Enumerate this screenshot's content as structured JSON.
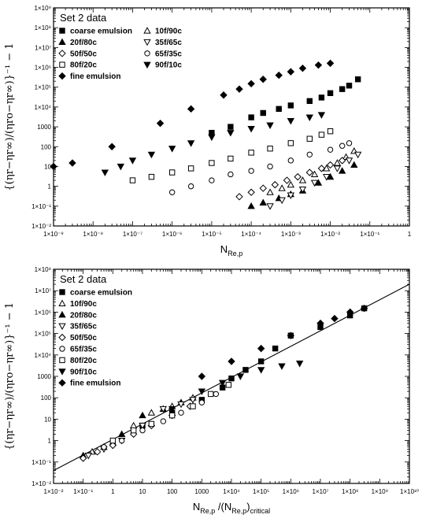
{
  "colors": {
    "ink": "#000000",
    "background": "#ffffff"
  },
  "chart_data": [
    {
      "type": "scatter",
      "xscale": "log",
      "yscale": "log",
      "xlim": [
        1e-09,
        1
      ],
      "ylim": [
        0.01,
        1000000000.0
      ],
      "grid": false,
      "legend_position": "top-left",
      "x_ticks": [
        1e-09,
        1e-08,
        1e-07,
        1e-06,
        1e-05,
        0.0001,
        0.001,
        0.01,
        0.1,
        1
      ],
      "x_tick_labels": [
        "1×10⁻⁹",
        "1×10⁻⁸",
        "1×10⁻⁷",
        "1×10⁻⁶",
        "1×10⁻⁵",
        "1×10⁻⁴",
        "1×10⁻³",
        "1×10⁻²",
        "1×10⁻¹",
        "1"
      ],
      "y_ticks": [
        0.01,
        0.1,
        1,
        10,
        100,
        1000,
        10000.0,
        100000.0,
        1000000.0,
        10000000.0,
        100000000.0,
        1000000000.0
      ],
      "y_tick_labels": [
        "1×10⁻²",
        "1×10⁻¹",
        "1",
        "10",
        "100",
        "1000",
        "1×10⁴",
        "1×10⁵",
        "1×10⁶",
        "1×10⁷",
        "1×10⁸",
        "1×10⁹"
      ],
      "xlabel": {
        "main": "N",
        "sub": "Re,p",
        "tail": ""
      },
      "ylabel": "{(ηr−ηr∞)/(ηro−ηr∞)}⁻¹ − 1",
      "legend_title": "Set 2 data",
      "legend_layout": "two-column",
      "series": [
        {
          "name": "coarse emulsion",
          "marker": "square",
          "filled": true,
          "x": [
            1e-05,
            3e-05,
            0.0001,
            0.0002,
            0.0005,
            0.001,
            0.003,
            0.006,
            0.01,
            0.02,
            0.03,
            0.05
          ],
          "y": [
            500,
            1000,
            3000,
            5000,
            8000,
            12000.0,
            20000.0,
            30000.0,
            50000.0,
            80000.0,
            120000.0,
            250000.0
          ]
        },
        {
          "name": "10f/90c",
          "marker": "triangle-up",
          "filled": false,
          "x": [
            0.0003,
            0.0006,
            0.001,
            0.002,
            0.004,
            0.008,
            0.015,
            0.025,
            0.04
          ],
          "y": [
            0.5,
            0.8,
            1.2,
            2,
            4,
            8,
            15,
            30,
            60
          ]
        },
        {
          "name": "20f/80c",
          "marker": "triangle-up",
          "filled": true,
          "x": [
            0.0001,
            0.0002,
            0.0005,
            0.001,
            0.002,
            0.005,
            0.01,
            0.02,
            0.04
          ],
          "y": [
            0.1,
            0.15,
            0.25,
            0.4,
            0.6,
            1.5,
            3,
            6,
            12
          ]
        },
        {
          "name": "35f/65c",
          "marker": "triangle-down",
          "filled": false,
          "x": [
            0.0003,
            0.0006,
            0.001,
            0.002,
            0.004,
            0.008,
            0.015,
            0.03,
            0.05
          ],
          "y": [
            0.1,
            0.2,
            0.35,
            0.7,
            1.5,
            3,
            8,
            20,
            40
          ]
        },
        {
          "name": "50f/50c",
          "marker": "diamond",
          "filled": false,
          "x": [
            5e-05,
            0.0001,
            0.0002,
            0.0004,
            0.0008,
            0.0015,
            0.003,
            0.006,
            0.01,
            0.02
          ],
          "y": [
            0.3,
            0.5,
            0.8,
            1.2,
            2,
            3,
            5,
            8,
            12,
            20
          ]
        },
        {
          "name": "65f/35c",
          "marker": "circle",
          "filled": false,
          "x": [
            1e-06,
            3e-06,
            1e-05,
            3e-05,
            0.0001,
            0.0003,
            0.001,
            0.003,
            0.01,
            0.02,
            0.03
          ],
          "y": [
            0.5,
            1,
            2,
            4,
            6,
            10,
            20,
            40,
            70,
            110,
            150
          ]
        },
        {
          "name": "80f/20c",
          "marker": "square",
          "filled": false,
          "x": [
            1e-07,
            3e-07,
            1e-06,
            3e-06,
            1e-05,
            3e-05,
            0.0001,
            0.0003,
            0.001,
            0.003,
            0.006,
            0.01
          ],
          "y": [
            2,
            3,
            5,
            8,
            15,
            25,
            50,
            80,
            150,
            250,
            400,
            600
          ]
        },
        {
          "name": "90f/10c",
          "marker": "triangle-down",
          "filled": true,
          "x": [
            2e-08,
            5e-08,
            1e-07,
            3e-07,
            1e-06,
            3e-06,
            1e-05,
            3e-05,
            0.0001,
            0.0003,
            0.001,
            0.003,
            0.006
          ],
          "y": [
            5,
            10,
            20,
            40,
            80,
            150,
            300,
            500,
            800,
            1200,
            2000,
            3000,
            4000
          ]
        },
        {
          "name": "fine emulsion",
          "marker": "diamond",
          "filled": true,
          "x": [
            1e-09,
            3e-09,
            3e-08,
            5e-07,
            3e-06,
            2e-05,
            5e-05,
            0.0001,
            0.0002,
            0.0005,
            0.001,
            0.002,
            0.005,
            0.01
          ],
          "y": [
            10,
            15,
            100,
            1500,
            8000,
            40000.0,
            80000.0,
            150000.0,
            250000.0,
            400000.0,
            600000.0,
            900000.0,
            1300000.0,
            1600000.0
          ]
        }
      ]
    },
    {
      "type": "scatter",
      "xscale": "log",
      "yscale": "log",
      "xlim": [
        0.01,
        10000000000.0
      ],
      "ylim": [
        0.01,
        100000000.0
      ],
      "grid": false,
      "legend_position": "top-left",
      "x_ticks": [
        0.01,
        0.1,
        1,
        10,
        100,
        1000,
        10000.0,
        100000.0,
        1000000.0,
        10000000.0,
        100000000.0,
        1000000000.0,
        10000000000.0
      ],
      "x_tick_labels": [
        "1×10⁻²",
        "1×10⁻¹",
        "1",
        "10",
        "100",
        "1000",
        "1×10⁴",
        "1×10⁵",
        "1×10⁶",
        "1×10⁷",
        "1×10⁸",
        "1×10⁹",
        "1×10¹⁰"
      ],
      "y_ticks": [
        0.01,
        0.1,
        1,
        10,
        100,
        1000,
        10000.0,
        100000.0,
        1000000.0,
        10000000.0,
        100000000.0
      ],
      "y_tick_labels": [
        "1×10⁻²",
        "1×10⁻¹",
        "1",
        "10",
        "100",
        "1000",
        "1×10⁴",
        "1×10⁵",
        "1×10⁶",
        "1×10⁷",
        "1×10⁸"
      ],
      "xlabel": {
        "main": "N",
        "sub": "Re,p",
        "tail": " /(N",
        "sub2": "Re,p",
        "tail2": ")",
        "sub3": "critical"
      },
      "ylabel": "{(ηr−ηr∞)/(ηro−ηr∞)}⁻¹ − 1",
      "legend_title": "Set 2 data",
      "legend_layout": "one-column",
      "fit_line": {
        "x": [
          0.01,
          10000000000.0
        ],
        "y": [
          0.04,
          20000000.0
        ]
      },
      "series": [
        {
          "name": "coarse emulsion",
          "marker": "square",
          "filled": true,
          "x": [
            10,
            100,
            1000,
            5000,
            10000.0,
            30000.0,
            100000.0,
            300000.0,
            1000000.0,
            10000000.0,
            100000000.0,
            300000000.0
          ],
          "y": [
            5,
            20,
            80,
            300,
            800,
            2000,
            5000,
            20000.0,
            80000.0,
            200000.0,
            700000.0,
            1500000.0
          ]
        },
        {
          "name": "10f/90c",
          "marker": "triangle-up",
          "filled": false,
          "x": [
            0.2,
            1,
            5,
            20,
            100,
            500
          ],
          "y": [
            0.3,
            0.8,
            5,
            20,
            40,
            100
          ]
        },
        {
          "name": "20f/80c",
          "marker": "triangle-up",
          "filled": true,
          "x": [
            0.1,
            0.5,
            2,
            10,
            50,
            200
          ],
          "y": [
            0.2,
            0.5,
            2,
            15,
            30,
            60
          ]
        },
        {
          "name": "35f/65c",
          "marker": "triangle-down",
          "filled": false,
          "x": [
            0.15,
            0.5,
            2,
            10,
            50,
            200,
            500
          ],
          "y": [
            0.2,
            0.4,
            1,
            5,
            30,
            50,
            80
          ]
        },
        {
          "name": "50f/50c",
          "marker": "diamond",
          "filled": false,
          "x": [
            0.1,
            0.3,
            1,
            5,
            20,
            100,
            400
          ],
          "y": [
            0.15,
            0.3,
            0.6,
            2,
            5,
            15,
            40
          ]
        },
        {
          "name": "65f/35c",
          "marker": "circle",
          "filled": false,
          "x": [
            0.5,
            2,
            10,
            50,
            200,
            1000,
            3000
          ],
          "y": [
            0.5,
            1,
            3,
            8,
            20,
            60,
            150
          ]
        },
        {
          "name": "80f/20c",
          "marker": "square",
          "filled": false,
          "x": [
            1,
            5,
            20,
            100,
            500,
            2000,
            8000
          ],
          "y": [
            1,
            3,
            6,
            15,
            40,
            150,
            400
          ]
        },
        {
          "name": "90f/10c",
          "marker": "triangle-down",
          "filled": true,
          "x": [
            100,
            1000,
            5000,
            20000.0,
            100000.0,
            500000.0,
            2000000.0
          ],
          "y": [
            30,
            200,
            500,
            1000,
            2000,
            3000,
            4000
          ]
        },
        {
          "name": "fine emulsion",
          "marker": "diamond",
          "filled": true,
          "x": [
            1000,
            10000.0,
            100000.0,
            1000000.0,
            10000000.0,
            30000000.0,
            100000000.0,
            300000000.0
          ],
          "y": [
            1000,
            5000,
            20000.0,
            80000.0,
            300000.0,
            500000.0,
            1000000.0,
            1500000.0
          ]
        }
      ]
    }
  ]
}
